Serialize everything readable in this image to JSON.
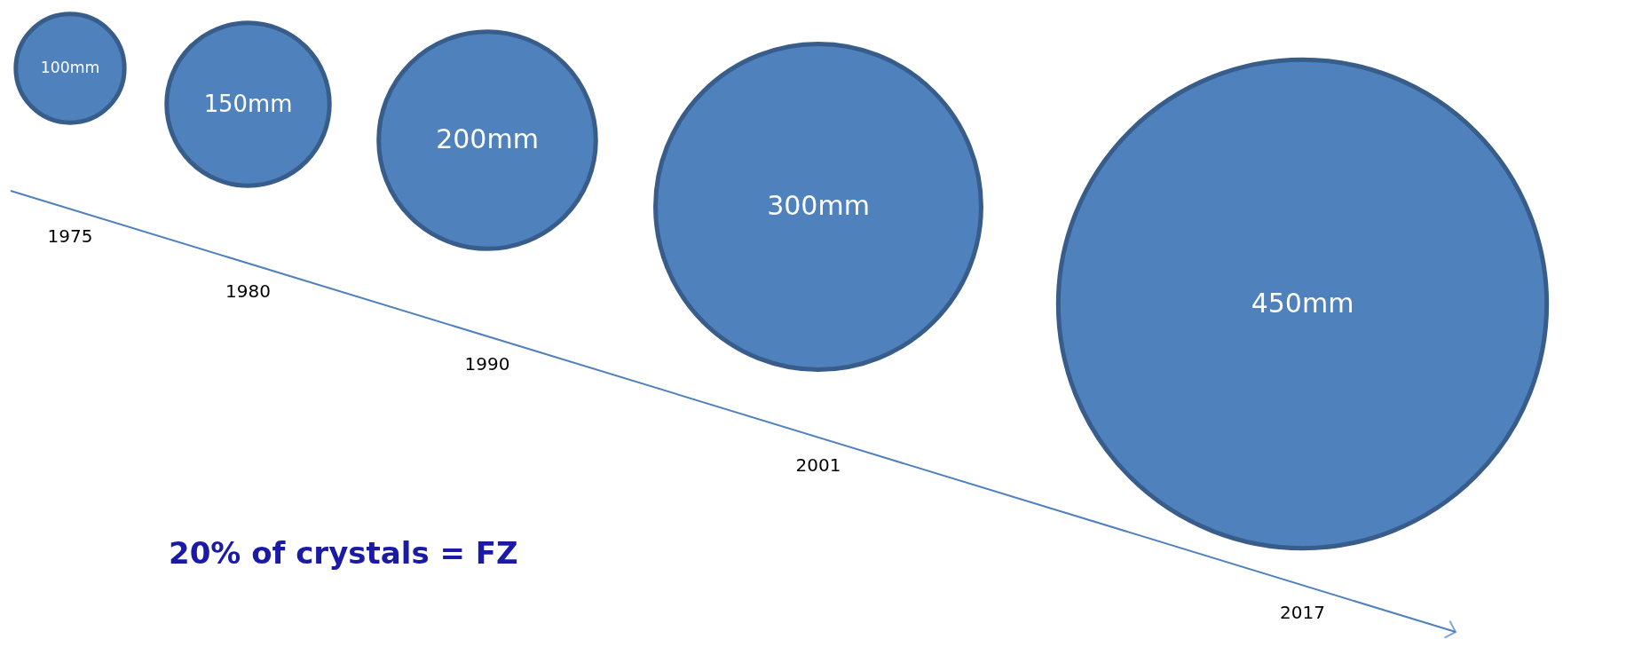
{
  "chart_data": {
    "type": "other",
    "categories": [
      "1975",
      "1980",
      "1990",
      "2001",
      "2017"
    ],
    "values": [
      100,
      150,
      200,
      300,
      450
    ],
    "value_labels": [
      "100mm",
      "150mm",
      "200mm",
      "300mm",
      "450mm"
    ],
    "colors": [
      "#4f81bd",
      "#4f81bd",
      "#4f81bd",
      "#4f81bd",
      "#4f81bd"
    ],
    "annotations": [
      "20% of crystals = FZ"
    ]
  }
}
